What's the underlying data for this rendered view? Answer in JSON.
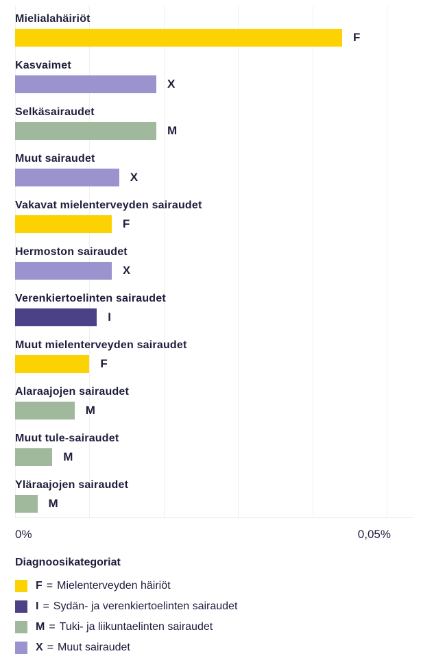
{
  "chart_data": {
    "type": "bar",
    "orientation": "horizontal",
    "title": "",
    "xlabel": "",
    "ylabel": "",
    "x_axis": {
      "min": 0,
      "max": 0.05,
      "min_label": "0%",
      "max_label": "0,05%",
      "gridline_step": 0.01,
      "grid": true
    },
    "rows": [
      {
        "label": "Mielialahäiriöt",
        "category": "F",
        "value_pct": 0.044
      },
      {
        "label": "Kasvaimet",
        "category": "X",
        "value_pct": 0.019
      },
      {
        "label": "Selkäsairaudet",
        "category": "M",
        "value_pct": 0.019
      },
      {
        "label": "Muut sairaudet",
        "category": "X",
        "value_pct": 0.014
      },
      {
        "label": "Vakavat mielenterveyden sairaudet",
        "category": "F",
        "value_pct": 0.013
      },
      {
        "label": "Hermoston sairaudet",
        "category": "X",
        "value_pct": 0.013
      },
      {
        "label": "Verenkiertoelinten sairaudet",
        "category": "I",
        "value_pct": 0.011
      },
      {
        "label": "Muut mielenterveyden sairaudet",
        "category": "F",
        "value_pct": 0.01
      },
      {
        "label": "Alaraajojen sairaudet",
        "category": "M",
        "value_pct": 0.008
      },
      {
        "label": "Muut tule-sairaudet",
        "category": "M",
        "value_pct": 0.005
      },
      {
        "label": "Yläraajojen sairaudet",
        "category": "M",
        "value_pct": 0.003
      }
    ],
    "categories_colors": {
      "F": "#fcd202",
      "I": "#4b4186",
      "M": "#a0b89c",
      "X": "#9a93ce"
    },
    "legend_position": "bottom"
  },
  "legend": {
    "title": "Diagnoosikategoriat",
    "equals_sign": "=",
    "items": [
      {
        "letter": "F",
        "label": "Mielenterveyden häiriöt",
        "color": "#fcd202"
      },
      {
        "letter": "I",
        "label": "Sydän- ja verenkiertoelinten sairaudet",
        "color": "#4b4186"
      },
      {
        "letter": "M",
        "label": "Tuki- ja liikuntaelinten sairaudet",
        "color": "#a0b89c"
      },
      {
        "letter": "X",
        "label": "Muut sairaudet",
        "color": "#9a93ce"
      }
    ]
  },
  "colors": {
    "text": "#1e1e3c",
    "gridline": "#f0f0f0",
    "axis_line": "#e6e6e6",
    "background": "#ffffff"
  }
}
